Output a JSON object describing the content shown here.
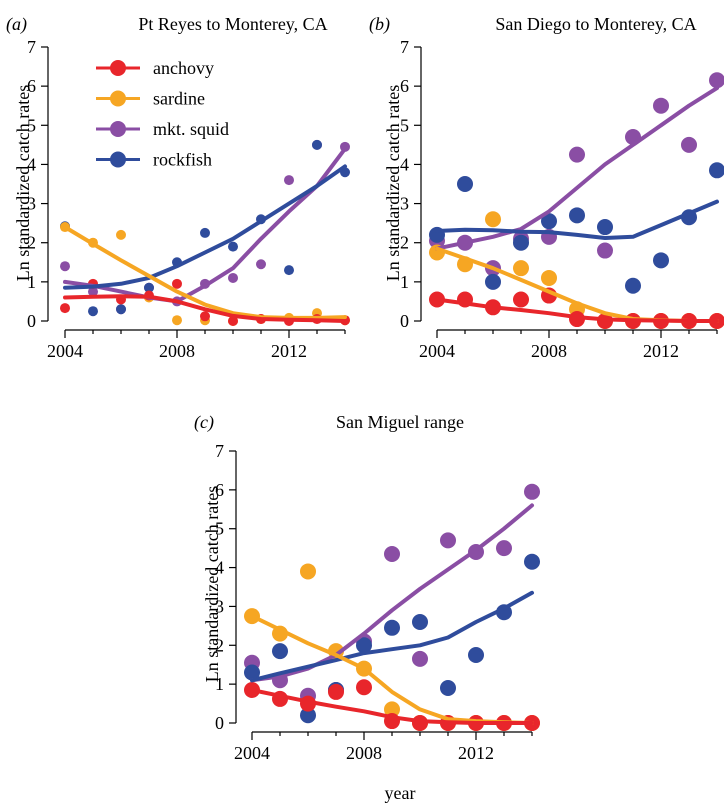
{
  "figure": {
    "xlabel": "year"
  },
  "colors": {
    "anchovy": "#e8262b",
    "sardine": "#f6a623",
    "squid": "#8a4ea4",
    "rockfish": "#2f4c9c"
  },
  "legend": [
    {
      "label": "anchovy",
      "color": "#e8262b"
    },
    {
      "label": "sardine",
      "color": "#f6a623"
    },
    {
      "label": "mkt. squid",
      "color": "#8a4ea4"
    },
    {
      "label": "rockfish",
      "color": "#2f4c9c"
    }
  ],
  "chart_data": [
    {
      "panel_label": "(a)",
      "type": "scatter",
      "title": "Pt Reyes to Monterey, CA",
      "ylabel": "Ln standardized catch rates",
      "xlabel": "",
      "xlim": [
        2004,
        2014
      ],
      "ylim": [
        0,
        7
      ],
      "xticks": [
        2004,
        2008,
        2012
      ],
      "yticks": [
        0,
        1,
        2,
        3,
        4,
        5,
        6,
        7
      ],
      "legend_position": "top-left",
      "points_small": true,
      "series": [
        {
          "name": "anchovy",
          "x": [
            2004,
            2005,
            2006,
            2007,
            2008,
            2009,
            2010,
            2011,
            2012,
            2013,
            2014
          ],
          "y": [
            0.33,
            0.95,
            0.55,
            0.65,
            0.95,
            0.12,
            0.0,
            0.05,
            0.0,
            0.05,
            0.02
          ],
          "trend": [
            0.6,
            0.62,
            0.63,
            0.62,
            0.5,
            0.3,
            0.13,
            0.05,
            0.03,
            0.02,
            0.0
          ]
        },
        {
          "name": "sardine",
          "x": [
            2004,
            2005,
            2006,
            2007,
            2008,
            2009,
            2010,
            2011,
            2012,
            2013,
            2014
          ],
          "y": [
            2.4,
            2.0,
            2.2,
            0.6,
            0.02,
            0.02,
            0.0,
            0.05,
            0.08,
            0.2,
            0.02
          ],
          "trend": [
            2.4,
            1.97,
            1.55,
            1.15,
            0.75,
            0.42,
            0.2,
            0.1,
            0.08,
            0.08,
            0.1
          ]
        },
        {
          "name": "mkt. squid",
          "x": [
            2004,
            2005,
            2006,
            2007,
            2008,
            2009,
            2010,
            2011,
            2012,
            2013,
            2014
          ],
          "y": [
            1.4,
            0.75,
            0.3,
            0.85,
            0.5,
            0.95,
            1.1,
            1.45,
            3.6,
            4.5,
            4.45
          ],
          "trend": [
            1.0,
            0.9,
            0.75,
            0.6,
            0.5,
            0.9,
            1.35,
            2.1,
            2.8,
            3.45,
            4.4
          ]
        },
        {
          "name": "rockfish",
          "x": [
            2004,
            2005,
            2006,
            2007,
            2008,
            2009,
            2010,
            2011,
            2012,
            2013,
            2014
          ],
          "y": [
            2.42,
            0.25,
            0.3,
            0.85,
            1.5,
            2.25,
            1.9,
            2.6,
            1.3,
            4.5,
            3.8
          ],
          "trend": [
            0.85,
            0.88,
            0.95,
            1.1,
            1.4,
            1.75,
            2.1,
            2.55,
            3.0,
            3.45,
            3.95
          ]
        }
      ]
    },
    {
      "panel_label": "(b)",
      "type": "scatter",
      "title": "San Diego to Monterey, CA",
      "ylabel": "Ln standardized catch rates",
      "xlabel": "",
      "xlim": [
        2004,
        2014
      ],
      "ylim": [
        0,
        7
      ],
      "xticks": [
        2004,
        2008,
        2012
      ],
      "yticks": [
        0,
        1,
        2,
        3,
        4,
        5,
        6,
        7
      ],
      "points_small": false,
      "series": [
        {
          "name": "anchovy",
          "x": [
            2004,
            2005,
            2006,
            2007,
            2008,
            2009,
            2010,
            2011,
            2012,
            2013,
            2014
          ],
          "y": [
            0.55,
            0.55,
            0.35,
            0.55,
            0.65,
            0.05,
            0.0,
            0.0,
            0.0,
            0.0,
            0.0
          ],
          "trend": [
            0.55,
            0.45,
            0.35,
            0.28,
            0.2,
            0.1,
            0.04,
            0.02,
            0.01,
            0.0,
            0.0
          ]
        },
        {
          "name": "sardine",
          "x": [
            2004,
            2005,
            2006,
            2007,
            2008,
            2009,
            2010,
            2011,
            2012,
            2013,
            2014
          ],
          "y": [
            1.75,
            1.45,
            2.6,
            1.35,
            1.1,
            0.3,
            0.0,
            0.0,
            0.0,
            0.0,
            0.0
          ],
          "trend": [
            1.85,
            1.6,
            1.35,
            1.05,
            0.75,
            0.45,
            0.2,
            0.05,
            0.02,
            0.0,
            0.0
          ]
        },
        {
          "name": "mkt. squid",
          "x": [
            2004,
            2005,
            2006,
            2007,
            2008,
            2009,
            2010,
            2011,
            2012,
            2013,
            2014
          ],
          "y": [
            2.05,
            2.0,
            1.35,
            2.1,
            2.15,
            4.25,
            1.8,
            4.7,
            5.5,
            4.5,
            6.15
          ],
          "trend": [
            1.85,
            2.0,
            2.15,
            2.35,
            2.8,
            3.4,
            4.0,
            4.5,
            5.0,
            5.5,
            5.95
          ]
        },
        {
          "name": "rockfish",
          "x": [
            2004,
            2005,
            2006,
            2007,
            2008,
            2009,
            2010,
            2011,
            2012,
            2013,
            2014
          ],
          "y": [
            2.2,
            3.5,
            1.0,
            2.0,
            2.55,
            2.7,
            2.4,
            0.9,
            1.55,
            2.65,
            3.85
          ],
          "trend": [
            2.3,
            2.33,
            2.32,
            2.28,
            2.27,
            2.2,
            2.12,
            2.15,
            2.45,
            2.75,
            3.05
          ]
        }
      ]
    },
    {
      "panel_label": "(c)",
      "type": "scatter",
      "title": "San Miguel range",
      "ylabel": "Ln standardized catch rates",
      "xlabel": "year",
      "xlim": [
        2004,
        2014
      ],
      "ylim": [
        0,
        7
      ],
      "xticks": [
        2004,
        2008,
        2012
      ],
      "yticks": [
        0,
        1,
        2,
        3,
        4,
        5,
        6,
        7
      ],
      "points_small": false,
      "series": [
        {
          "name": "anchovy",
          "x": [
            2004,
            2005,
            2006,
            2007,
            2008,
            2009,
            2010,
            2011,
            2012,
            2013,
            2014
          ],
          "y": [
            0.85,
            0.62,
            0.5,
            0.8,
            0.92,
            0.05,
            0.0,
            0.0,
            0.0,
            0.0,
            0.0
          ],
          "trend": [
            0.85,
            0.7,
            0.55,
            0.42,
            0.3,
            0.15,
            0.05,
            0.02,
            0.0,
            0.0,
            0.0
          ]
        },
        {
          "name": "sardine",
          "x": [
            2004,
            2005,
            2006,
            2007,
            2008,
            2009,
            2010,
            2011,
            2012,
            2013,
            2014
          ],
          "y": [
            2.75,
            2.3,
            3.9,
            1.85,
            1.4,
            0.35,
            0.0,
            0.0,
            0.0,
            0.0,
            0.0
          ],
          "trend": [
            2.75,
            2.4,
            2.05,
            1.75,
            1.4,
            0.8,
            0.35,
            0.1,
            0.05,
            0.02,
            0.0
          ]
        },
        {
          "name": "mkt. squid",
          "x": [
            2004,
            2005,
            2006,
            2007,
            2008,
            2009,
            2010,
            2011,
            2012,
            2013,
            2014
          ],
          "y": [
            1.55,
            1.1,
            0.7,
            0.85,
            2.1,
            4.35,
            1.65,
            4.7,
            4.4,
            4.5,
            5.95
          ],
          "trend": [
            1.1,
            1.2,
            1.4,
            1.75,
            2.3,
            2.9,
            3.45,
            3.95,
            4.45,
            5.0,
            5.6
          ]
        },
        {
          "name": "rockfish",
          "x": [
            2004,
            2005,
            2006,
            2007,
            2008,
            2009,
            2010,
            2011,
            2012,
            2013,
            2014
          ],
          "y": [
            1.3,
            1.85,
            0.2,
            0.85,
            2.0,
            2.45,
            2.6,
            0.9,
            1.75,
            2.85,
            4.15
          ],
          "trend": [
            1.1,
            1.28,
            1.45,
            1.62,
            1.8,
            1.9,
            2.0,
            2.2,
            2.6,
            2.95,
            3.35
          ]
        }
      ]
    }
  ]
}
